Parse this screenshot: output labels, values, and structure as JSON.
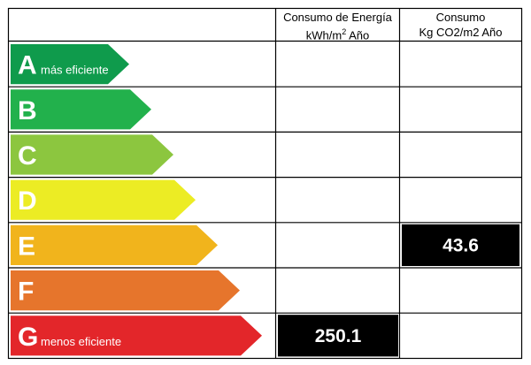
{
  "header": {
    "col1_line1": "Consumo de Energía",
    "col1_line2_prefix": "kWh/m",
    "col1_line2_sup": "2",
    "col1_line2_suffix": " Año",
    "col2_line1": "Consumo",
    "col2_line2": "Kg CO2/m2 Año"
  },
  "classes": [
    {
      "letter": "A",
      "subtext": "más eficiente",
      "color": "#0f9b4c"
    },
    {
      "letter": "B",
      "subtext": "",
      "color": "#22b14c"
    },
    {
      "letter": "C",
      "subtext": "",
      "color": "#8cc63f"
    },
    {
      "letter": "D",
      "subtext": "",
      "color": "#ecec24"
    },
    {
      "letter": "E",
      "subtext": "",
      "color": "#f1b41c"
    },
    {
      "letter": "F",
      "subtext": "",
      "color": "#e6752c"
    },
    {
      "letter": "G",
      "subtext": "menos eficiente",
      "color": "#e3262a"
    }
  ],
  "ratings": {
    "energy": {
      "class": "G",
      "value": "250.1"
    },
    "emissions": {
      "class": "E",
      "value": "43.6"
    }
  }
}
